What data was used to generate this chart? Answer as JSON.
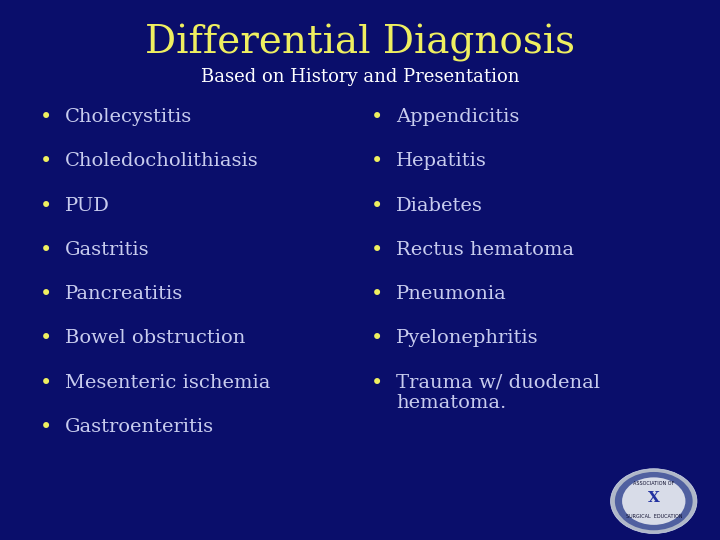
{
  "title": "Differential Diagnosis",
  "subtitle": "Based on History and Presentation",
  "left_items": [
    "Cholecystitis",
    "Choledocholithiasis",
    "PUD",
    "Gastritis",
    "Pancreatitis",
    "Bowel obstruction",
    "Mesenteric ischemia",
    "Gastroenteritis"
  ],
  "right_items": [
    "Appendicitis",
    "Hepatitis",
    "Diabetes",
    "Rectus hematoma",
    "Pneumonia",
    "Pyelonephritis",
    "Trauma w/ duodenal\nhematoma."
  ],
  "background_color": "#0a0e6b",
  "title_color": "#efef60",
  "subtitle_color": "#ffffff",
  "bullet_color": "#efef60",
  "text_color": "#c8ccee",
  "title_fontsize": 28,
  "subtitle_fontsize": 13,
  "bullet_fontsize": 14,
  "bullet_char": "•",
  "fig_width": 7.2,
  "fig_height": 5.4,
  "dpi": 100
}
